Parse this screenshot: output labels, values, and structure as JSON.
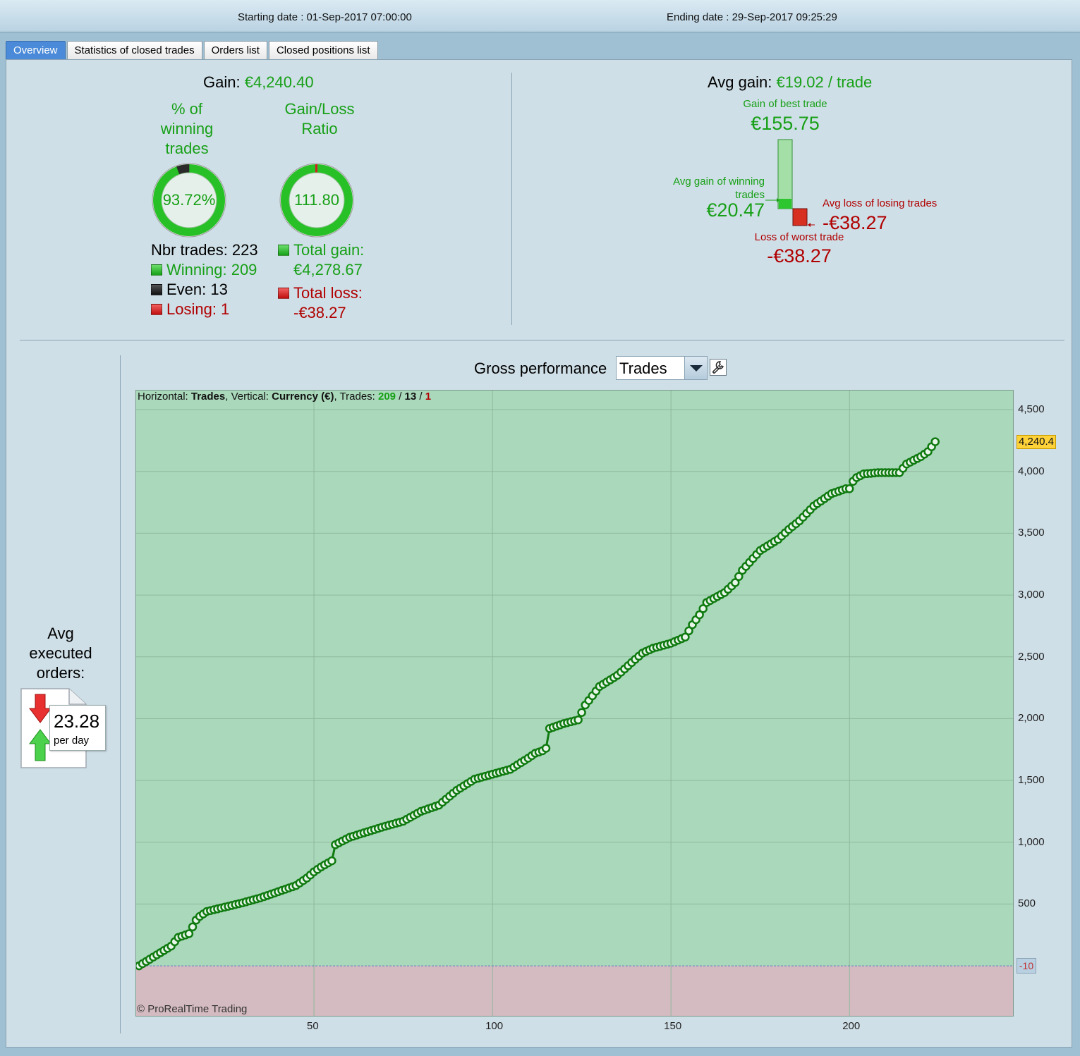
{
  "header": {
    "starting_date": "Starting date : 01-Sep-2017 07:00:00",
    "ending_date": "Ending date : 29-Sep-2017 09:25:29"
  },
  "tabs": [
    {
      "label": "Overview",
      "active": true
    },
    {
      "label": "Statistics of closed trades",
      "active": false
    },
    {
      "label": "Orders list",
      "active": false
    },
    {
      "label": "Closed positions list",
      "active": false
    }
  ],
  "overview": {
    "gain_label": "Gain:",
    "gain_value": "€4,240.40",
    "winning_pct_title_1": "% of",
    "winning_pct_title_2": "winning",
    "winning_pct_title_3": "trades",
    "winning_pct_value": "93.72%",
    "winning_pct_fraction": 0.9372,
    "gl_ratio_title_1": "Gain/Loss",
    "gl_ratio_title_2": "Ratio",
    "gl_ratio_value": "111.80",
    "nbr_trades": "Nbr trades: 223",
    "winning": "Winning: 209",
    "even": "Even: 13",
    "losing": "Losing: 1",
    "total_gain_label": "Total gain:",
    "total_gain_value": "€4,278.67",
    "total_loss_label": "Total loss:",
    "total_loss_value": "-€38.27",
    "avg_gain_label": "Avg gain:",
    "avg_gain_value": "€19.02 / trade",
    "best_trade_label": "Gain of best trade",
    "best_trade_value": "€155.75",
    "avg_win_label_1": "Avg gain of winning",
    "avg_win_label_2": "trades",
    "avg_win_value": "€20.47",
    "avg_loss_label": "Avg loss of losing trades",
    "avg_loss_value": "-€38.27",
    "worst_trade_label": "Loss of worst trade",
    "worst_trade_value": "-€38.27"
  },
  "orders": {
    "title_1": "Avg",
    "title_2": "executed",
    "title_3": "orders:",
    "value": "23.28",
    "unit": "per day"
  },
  "performance": {
    "title": "Gross performance",
    "selected": "Trades",
    "info_horizontal": "Horizontal: ",
    "info_trades": "Trades",
    "info_vertical": ", Vertical: ",
    "info_currency": "Currency (€)",
    "info_trades_label": ", Trades: ",
    "info_win": "209",
    "info_sep1": " / ",
    "info_even": "13",
    "info_sep2": " / ",
    "info_loss": "1",
    "copyright": "© ProRealTime Trading",
    "last_value": "4,240.4",
    "zero_label": "-10"
  },
  "colors": {
    "accent_green": "#17a017",
    "loss_red": "#b00000",
    "positive_area": "#aad8bb",
    "negative_area": "#d4bbc1",
    "line": "#0f7a0f"
  },
  "chart_data": {
    "type": "line",
    "xlabel": "",
    "ylabel": "",
    "xlim": [
      0,
      246
    ],
    "ylim": [
      -410,
      4660
    ],
    "x_ticks": [
      50,
      100,
      150,
      200
    ],
    "x_tick_labels": [
      "50",
      "100",
      "150",
      "200"
    ],
    "y_ticks": [
      500,
      1000,
      1500,
      2000,
      2500,
      3000,
      3500,
      4000,
      4500
    ],
    "y_tick_labels": [
      "500",
      "1,000",
      "1,500",
      "2,000",
      "2,500",
      "3,000",
      "3,500",
      "4,000",
      "4,500"
    ],
    "grid": true,
    "series": [
      {
        "values_x": [
          1,
          10,
          12,
          15,
          17,
          18,
          20,
          30,
          35,
          40,
          45,
          48,
          50,
          52,
          55,
          56,
          60,
          70,
          75,
          80,
          85,
          90,
          95,
          100,
          105,
          110,
          112,
          114,
          115,
          116,
          120,
          124,
          126,
          130,
          135,
          140,
          142,
          145,
          150,
          154,
          156,
          158,
          160,
          165,
          168,
          170,
          175,
          180,
          183,
          186,
          190,
          195,
          199,
          200,
          201,
          202,
          204,
          208,
          214,
          216,
          220,
          222,
          224
        ],
        "values_y": [
          0,
          160,
          230,
          260,
          370,
          400,
          440,
          510,
          550,
          600,
          650,
          710,
          760,
          800,
          850,
          980,
          1040,
          1130,
          1170,
          1250,
          1300,
          1420,
          1510,
          1550,
          1590,
          1680,
          1720,
          1740,
          1760,
          1920,
          1960,
          1990,
          2110,
          2260,
          2350,
          2480,
          2530,
          2570,
          2610,
          2660,
          2760,
          2840,
          2940,
          3020,
          3100,
          3200,
          3360,
          3450,
          3530,
          3600,
          3720,
          3820,
          3860,
          3860,
          3920,
          3950,
          3980,
          3990,
          3990,
          4060,
          4120,
          4160,
          4240
        ]
      }
    ]
  }
}
